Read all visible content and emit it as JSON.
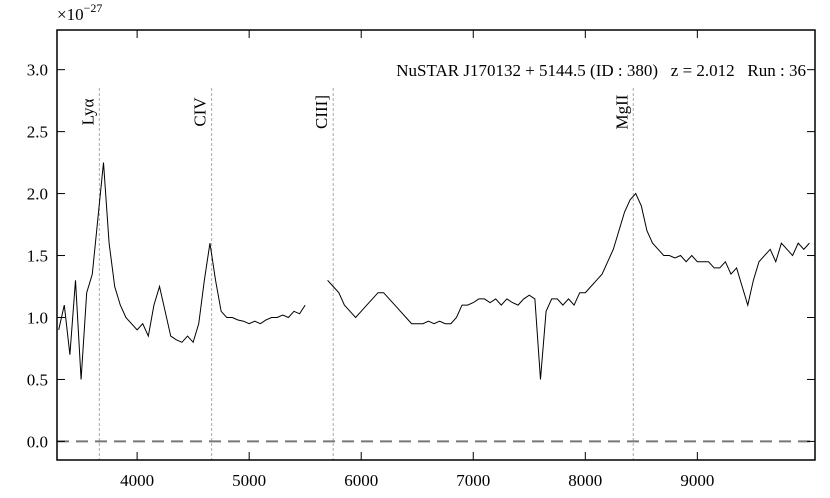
{
  "chart_data": {
    "type": "line",
    "title": "NuSTAR J170132 + 5144.5 (ID : 380)   z = 2.012   Run : 36",
    "y_offset_base": "×10",
    "y_offset_exponent": "−27",
    "xlim": [
      3285,
      10050
    ],
    "ylim": [
      -0.15,
      3.32
    ],
    "xticks": [
      4000,
      5000,
      6000,
      7000,
      8000,
      9000
    ],
    "yticks": [
      {
        "value": 0,
        "label": "0.0"
      },
      0.5,
      {
        "value": 1,
        "label": "1.0"
      },
      1.5,
      {
        "value": 2,
        "label": "2.0"
      },
      2.5,
      {
        "value": 3,
        "label": "3.0"
      }
    ],
    "reference_line": 0,
    "emission_lines": [
      {
        "name": "Lyα",
        "x": 3663
      },
      {
        "name": "CIV",
        "x": 4665
      },
      {
        "name": "CIII]",
        "x": 5750
      },
      {
        "name": "MgII",
        "x": 8428
      }
    ],
    "series": [
      {
        "color": "#000000",
        "x": [
          3300,
          3350,
          3400,
          3450,
          3500,
          3550,
          3600,
          3650,
          3700,
          3750,
          3800,
          3850,
          3900,
          3950,
          4000,
          4050,
          4100,
          4150,
          4200,
          4250,
          4300,
          4350,
          4400,
          4450,
          4500,
          4550,
          4600,
          4650,
          4700,
          4750,
          4800,
          4850,
          4900,
          4950,
          5000,
          5050,
          5100,
          5150,
          5200,
          5250,
          5300,
          5350,
          5400,
          5450,
          5500,
          5550,
          5600,
          5650,
          5700,
          5750,
          5800,
          5850,
          5900,
          5950,
          6000,
          6050,
          6100,
          6150,
          6200,
          6250,
          6300,
          6350,
          6400,
          6450,
          6500,
          6550,
          6600,
          6650,
          6700,
          6750,
          6800,
          6850,
          6900,
          6950,
          7000,
          7050,
          7100,
          7150,
          7200,
          7250,
          7300,
          7350,
          7400,
          7450,
          7500,
          7550,
          7600,
          7650,
          7700,
          7750,
          7800,
          7850,
          7900,
          7950,
          8000,
          8050,
          8100,
          8150,
          8200,
          8250,
          8300,
          8350,
          8400,
          8450,
          8500,
          8550,
          8600,
          8650,
          8700,
          8750,
          8800,
          8850,
          8900,
          8950,
          9000,
          9050,
          9100,
          9150,
          9200,
          9250,
          9300,
          9350,
          9400,
          9450,
          9500,
          9550,
          9600,
          9650,
          9700,
          9750,
          9800,
          9850,
          9900,
          9950,
          10000
        ],
        "values": [
          0.9,
          1.1,
          0.7,
          1.3,
          0.5,
          1.2,
          1.35,
          1.8,
          2.25,
          1.6,
          1.25,
          1.1,
          1.0,
          0.95,
          0.9,
          0.95,
          0.85,
          1.1,
          1.25,
          1.05,
          0.85,
          0.82,
          0.8,
          0.85,
          0.8,
          0.95,
          1.3,
          1.6,
          1.3,
          1.05,
          1.0,
          1.0,
          0.98,
          0.97,
          0.95,
          0.97,
          0.95,
          0.98,
          1.0,
          1.0,
          1.02,
          1.0,
          1.05,
          1.03,
          1.1,
          null,
          null,
          null,
          1.3,
          1.25,
          1.2,
          1.1,
          1.05,
          1.0,
          1.05,
          1.1,
          1.15,
          1.2,
          1.2,
          1.15,
          1.1,
          1.05,
          1.0,
          0.95,
          0.95,
          0.95,
          0.97,
          0.95,
          0.97,
          0.95,
          0.95,
          1.0,
          1.1,
          1.1,
          1.12,
          1.15,
          1.15,
          1.12,
          1.15,
          1.1,
          1.15,
          1.12,
          1.1,
          1.15,
          1.18,
          1.15,
          0.5,
          1.05,
          1.15,
          1.15,
          1.1,
          1.15,
          1.1,
          1.2,
          1.2,
          1.25,
          1.3,
          1.35,
          1.45,
          1.55,
          1.7,
          1.85,
          1.95,
          2.0,
          1.9,
          1.7,
          1.6,
          1.55,
          1.5,
          1.5,
          1.48,
          1.5,
          1.45,
          1.5,
          1.45,
          1.45,
          1.45,
          1.4,
          1.4,
          1.45,
          1.35,
          1.4,
          1.25,
          1.1,
          1.3,
          1.45,
          1.5,
          1.55,
          1.45,
          1.6,
          1.55,
          1.5,
          1.6,
          1.55,
          1.6
        ]
      }
    ]
  }
}
